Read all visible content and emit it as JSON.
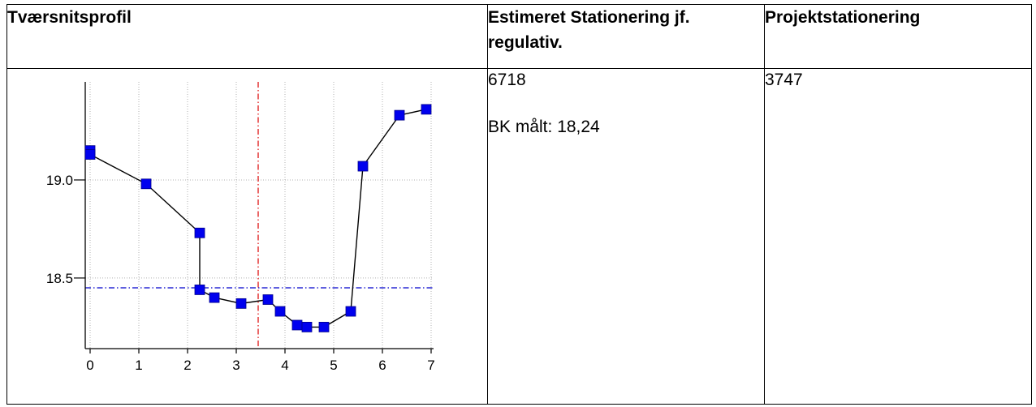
{
  "table": {
    "headers": [
      "Tværsnitsprofil",
      "Estimeret Stationering jf. regulativ.",
      "Projektstationering"
    ],
    "estimated_station": "6718",
    "bk_measured": "BK målt: 18,24",
    "project_station": "3747"
  },
  "chart_data": {
    "type": "line",
    "title": "",
    "xlabel": "",
    "ylabel": "",
    "xlim": [
      -0.1,
      7.05
    ],
    "ylim": [
      18.14,
      19.5
    ],
    "xticks": [
      0,
      1,
      2,
      3,
      4,
      5,
      6,
      7
    ],
    "yticks": [
      18.5,
      19.0
    ],
    "ytick_labels": [
      "18.5",
      "19.0"
    ],
    "grid": true,
    "series": [
      {
        "color": "#0000ee",
        "marker": "square",
        "x": [
          0.0,
          0.0,
          1.15,
          2.25,
          2.25,
          2.55,
          3.1,
          3.65,
          3.9,
          4.25,
          4.45,
          4.8,
          5.35,
          5.6,
          6.35,
          6.9
        ],
        "y": [
          19.15,
          19.13,
          18.98,
          18.73,
          18.44,
          18.4,
          18.37,
          18.39,
          18.33,
          18.26,
          18.25,
          18.25,
          18.33,
          19.07,
          19.33,
          19.36
        ]
      }
    ],
    "reference_lines": [
      {
        "orientation": "vertical",
        "value": 3.45,
        "color": "#dd0000",
        "style": "dashdot"
      },
      {
        "orientation": "horizontal",
        "value": 18.45,
        "color": "#0000cc",
        "style": "dashdot"
      }
    ]
  }
}
